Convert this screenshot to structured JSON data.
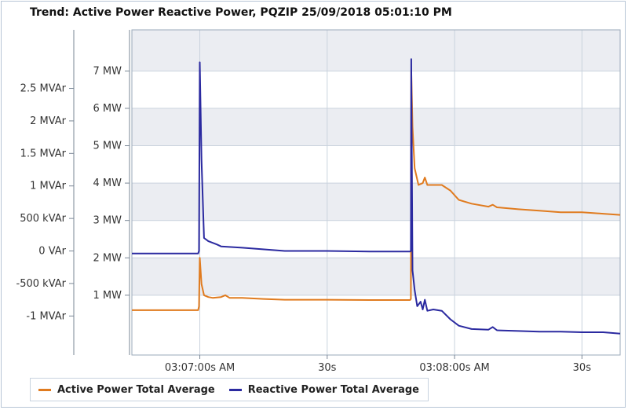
{
  "title": "Trend: Active Power  Reactive Power, PQZIP 25/09/2018 05:01:10 PM",
  "chart_data": {
    "type": "line",
    "grid": true,
    "legend_position": "bottom-left",
    "x_ticks": [
      "03:07:00s AM",
      "30s",
      "03:08:00s AM",
      "30s"
    ],
    "x_tick_seconds": [
      0,
      30,
      60,
      90
    ],
    "xlim": [
      -16,
      99
    ],
    "y_left_outer": {
      "ticks": [
        "2.5 MVAr",
        "2 MVAr",
        "1.5 MVAr",
        "1 MVAr",
        "500 kVAr",
        "0 VAr",
        "-500 kVAr",
        "-1 MVAr"
      ],
      "tick_values": [
        2.5,
        2,
        1.5,
        1,
        0.5,
        0,
        -0.5,
        -1
      ],
      "unit": "MVAr",
      "lim": [
        -1.6,
        3.4
      ]
    },
    "y_left_inner": {
      "ticks": [
        "7 MW",
        "6 MW",
        "5 MW",
        "4 MW",
        "3 MW",
        "2 MW",
        "1 MW"
      ],
      "tick_values": [
        7,
        6,
        5,
        4,
        3,
        2,
        1
      ],
      "unit": "MW",
      "lim": [
        -0.6,
        8.1
      ]
    },
    "series": [
      {
        "name": "Active Power Total Average",
        "color": "#e07b1f",
        "axis": "y_left_inner",
        "points": [
          [
            -16,
            0.6
          ],
          [
            -0.4,
            0.6
          ],
          [
            -0.2,
            0.7
          ],
          [
            0,
            2.0
          ],
          [
            0.4,
            1.3
          ],
          [
            1,
            1.0
          ],
          [
            2,
            0.95
          ],
          [
            3,
            0.93
          ],
          [
            5,
            0.95
          ],
          [
            6,
            1.0
          ],
          [
            7,
            0.93
          ],
          [
            10,
            0.93
          ],
          [
            15,
            0.9
          ],
          [
            20,
            0.88
          ],
          [
            30,
            0.88
          ],
          [
            40,
            0.87
          ],
          [
            49.5,
            0.87
          ],
          [
            49.7,
            0.9
          ],
          [
            49.8,
            7.0
          ],
          [
            50.1,
            5.5
          ],
          [
            50.6,
            4.4
          ],
          [
            51.5,
            3.95
          ],
          [
            52.5,
            4.0
          ],
          [
            53,
            4.15
          ],
          [
            53.6,
            3.95
          ],
          [
            55,
            3.95
          ],
          [
            57,
            3.95
          ],
          [
            59,
            3.8
          ],
          [
            61,
            3.55
          ],
          [
            64,
            3.45
          ],
          [
            68,
            3.37
          ],
          [
            69,
            3.42
          ],
          [
            70,
            3.35
          ],
          [
            75,
            3.3
          ],
          [
            80,
            3.26
          ],
          [
            85,
            3.22
          ],
          [
            90,
            3.22
          ],
          [
            95,
            3.18
          ],
          [
            99,
            3.15
          ]
        ]
      },
      {
        "name": "Reactive Power Total Average",
        "color": "#2b2aa0",
        "axis": "y_left_outer",
        "points": [
          [
            -16,
            -0.04
          ],
          [
            -0.4,
            -0.04
          ],
          [
            -0.2,
            0.0
          ],
          [
            0,
            2.9
          ],
          [
            0.4,
            1.4
          ],
          [
            1,
            0.2
          ],
          [
            2,
            0.15
          ],
          [
            4,
            0.1
          ],
          [
            5,
            0.07
          ],
          [
            10,
            0.05
          ],
          [
            20,
            0.0
          ],
          [
            30,
            0.0
          ],
          [
            40,
            -0.01
          ],
          [
            49.5,
            -0.01
          ],
          [
            49.7,
            0.0
          ],
          [
            49.8,
            2.95
          ],
          [
            50.1,
            -0.3
          ],
          [
            50.6,
            -0.6
          ],
          [
            51.2,
            -0.85
          ],
          [
            52,
            -0.78
          ],
          [
            52.5,
            -0.9
          ],
          [
            53,
            -0.75
          ],
          [
            53.6,
            -0.92
          ],
          [
            55,
            -0.9
          ],
          [
            57,
            -0.92
          ],
          [
            59,
            -1.05
          ],
          [
            61,
            -1.15
          ],
          [
            64,
            -1.2
          ],
          [
            68,
            -1.21
          ],
          [
            69,
            -1.17
          ],
          [
            70,
            -1.22
          ],
          [
            75,
            -1.23
          ],
          [
            80,
            -1.24
          ],
          [
            85,
            -1.24
          ],
          [
            90,
            -1.25
          ],
          [
            95,
            -1.25
          ],
          [
            99,
            -1.27
          ]
        ]
      }
    ]
  }
}
